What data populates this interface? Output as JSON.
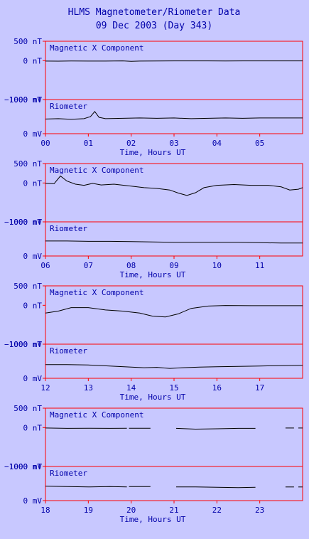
{
  "header": {
    "title": "HLMS Magnetometer/Riometer Data",
    "subtitle": "09 Dec 2003 (Day 343)"
  },
  "colors": {
    "background": "#c8c8ff",
    "frame": "#ff0000",
    "text": "#0000aa",
    "trace": "#000000"
  },
  "chart_data": [
    {
      "type": "line",
      "panel": "00-06 UT",
      "xlabel": "Time, Hours UT",
      "x_ticks": [
        "00",
        "01",
        "02",
        "03",
        "04",
        "05"
      ],
      "xlim": [
        0,
        6
      ],
      "subplots": [
        {
          "label": "Magnetic X Component",
          "unit": "nT",
          "y_ticks": [
            {
              "label": "500 nT",
              "value": 500
            },
            {
              "label": "0 nT",
              "value": 0
            },
            {
              "label": "−1000 nT",
              "value": -1000
            }
          ],
          "ylim": [
            -1000,
            500
          ],
          "series": [
            {
              "x": [
                0,
                0.3,
                0.6,
                1.0,
                1.4,
                1.8,
                2.0,
                2.2,
                2.6,
                3.0,
                3.4,
                3.8,
                4.2,
                4.6,
                5.0,
                5.5,
                6.0
              ],
              "y": [
                -10,
                -12,
                -8,
                -10,
                -10,
                -5,
                -15,
                -10,
                -8,
                -5,
                -5,
                -5,
                -8,
                -5,
                -5,
                -5,
                -5
              ]
            }
          ]
        },
        {
          "label": "Riometer",
          "unit": "mV",
          "y_ticks": [
            {
              "label": "1000 mV",
              "value": 1000
            },
            {
              "label": "0 mV",
              "value": 0
            }
          ],
          "ylim": [
            0,
            1000
          ],
          "series": [
            {
              "x": [
                0,
                0.3,
                0.6,
                0.9,
                1.05,
                1.15,
                1.25,
                1.4,
                1.8,
                2.2,
                2.6,
                3.0,
                3.4,
                3.8,
                4.2,
                4.6,
                5.0,
                5.5,
                6.0
              ],
              "y": [
                430,
                440,
                420,
                440,
                500,
                650,
                480,
                440,
                450,
                460,
                450,
                460,
                440,
                450,
                460,
                450,
                460,
                460,
                460
              ]
            }
          ]
        }
      ]
    },
    {
      "type": "line",
      "panel": "06-12 UT",
      "xlabel": "Time, Hours UT",
      "x_ticks": [
        "06",
        "07",
        "08",
        "09",
        "10",
        "11"
      ],
      "xlim": [
        6,
        12
      ],
      "subplots": [
        {
          "label": "Magnetic X Component",
          "unit": "nT",
          "y_ticks": [
            {
              "label": "500 nT",
              "value": 500
            },
            {
              "label": "0 nT",
              "value": 0
            },
            {
              "label": "−1000 nT",
              "value": -1000
            }
          ],
          "ylim": [
            -1000,
            500
          ],
          "series": [
            {
              "x": [
                6,
                6.2,
                6.35,
                6.5,
                6.7,
                6.9,
                7.1,
                7.3,
                7.6,
                8.0,
                8.3,
                8.6,
                8.9,
                9.1,
                9.3,
                9.5,
                9.7,
                10.0,
                10.4,
                10.8,
                11.2,
                11.5,
                11.7,
                11.9,
                12.0
              ],
              "y": [
                -10,
                -20,
                180,
                50,
                -30,
                -60,
                -10,
                -50,
                -30,
                -80,
                -120,
                -140,
                -180,
                -260,
                -320,
                -250,
                -120,
                -60,
                -40,
                -60,
                -60,
                -100,
                -180,
                -160,
                -120
              ]
            }
          ]
        },
        {
          "label": "Riometer",
          "unit": "mV",
          "y_ticks": [
            {
              "label": "1000 mV",
              "value": 1000
            },
            {
              "label": "0 mV",
              "value": 0
            }
          ],
          "ylim": [
            0,
            1000
          ],
          "series": [
            {
              "x": [
                6,
                6.5,
                7.0,
                7.5,
                8.0,
                8.5,
                9.0,
                9.5,
                10.0,
                10.5,
                11.0,
                11.5,
                12.0
              ],
              "y": [
                440,
                440,
                430,
                430,
                420,
                410,
                400,
                400,
                400,
                400,
                390,
                380,
                380
              ]
            }
          ]
        }
      ]
    },
    {
      "type": "line",
      "panel": "12-18 UT",
      "xlabel": "Time, Hours UT",
      "x_ticks": [
        "12",
        "13",
        "14",
        "15",
        "16",
        "17"
      ],
      "xlim": [
        12,
        18
      ],
      "subplots": [
        {
          "label": "Magnetic X Component",
          "unit": "nT",
          "y_ticks": [
            {
              "label": "500 nT",
              "value": 500
            },
            {
              "label": "0 nT",
              "value": 0
            },
            {
              "label": "−1000 nT",
              "value": -1000
            }
          ],
          "ylim": [
            -1000,
            500
          ],
          "series": [
            {
              "x": [
                12,
                12.3,
                12.6,
                13.0,
                13.4,
                13.8,
                14.2,
                14.5,
                14.8,
                15.1,
                15.4,
                15.8,
                16.2,
                16.8,
                17.4,
                18.0
              ],
              "y": [
                -200,
                -150,
                -60,
                -60,
                -120,
                -150,
                -200,
                -280,
                -300,
                -220,
                -80,
                -20,
                -5,
                -10,
                -10,
                -10
              ]
            }
          ]
        },
        {
          "label": "Riometer",
          "unit": "mV",
          "y_ticks": [
            {
              "label": "1000 mV",
              "value": 1000
            },
            {
              "label": "0 mV",
              "value": 0
            }
          ],
          "ylim": [
            0,
            1000
          ],
          "series": [
            {
              "x": [
                12,
                12.5,
                13.0,
                13.5,
                14.0,
                14.3,
                14.6,
                14.9,
                15.2,
                15.6,
                16.0,
                16.5,
                17.0,
                17.5,
                18.0
              ],
              "y": [
                400,
                400,
                390,
                360,
                330,
                310,
                320,
                290,
                310,
                330,
                340,
                350,
                360,
                370,
                380
              ]
            }
          ]
        }
      ]
    },
    {
      "type": "line",
      "panel": "18-24 UT",
      "xlabel": "Time, Hours UT",
      "x_ticks": [
        "18",
        "19",
        "20",
        "21",
        "22",
        "23"
      ],
      "xlim": [
        18,
        24
      ],
      "subplots": [
        {
          "label": "Magnetic X Component",
          "unit": "nT",
          "y_ticks": [
            {
              "label": "500 nT",
              "value": 500
            },
            {
              "label": "0 nT",
              "value": 0
            },
            {
              "label": "−1000 nT",
              "value": -1000
            }
          ],
          "ylim": [
            -1000,
            500
          ],
          "series": [
            {
              "x": [
                18.0,
                18.5,
                19.0,
                19.5,
                19.9
              ],
              "y": [
                -10,
                -20,
                -15,
                -20,
                -15
              ]
            },
            {
              "x": [
                19.95,
                20.45
              ],
              "y": [
                -15,
                -15
              ]
            },
            {
              "x": [
                21.05,
                21.5,
                22.0,
                22.5,
                22.9
              ],
              "y": [
                -20,
                -40,
                -30,
                -20,
                -20
              ]
            },
            {
              "x": [
                23.6,
                23.8
              ],
              "y": [
                -10,
                -10
              ]
            },
            {
              "x": [
                23.9,
                24.0
              ],
              "y": [
                -10,
                -10
              ]
            }
          ]
        },
        {
          "label": "Riometer",
          "unit": "mV",
          "y_ticks": [
            {
              "label": "1000 mV",
              "value": 1000
            },
            {
              "label": "0 mV",
              "value": 0
            }
          ],
          "ylim": [
            0,
            1000
          ],
          "series": [
            {
              "x": [
                18.0,
                18.5,
                19.0,
                19.5,
                19.9
              ],
              "y": [
                420,
                410,
                400,
                410,
                400
              ]
            },
            {
              "x": [
                19.95,
                20.45
              ],
              "y": [
                410,
                410
              ]
            },
            {
              "x": [
                21.05,
                21.5,
                22.0,
                22.5,
                22.9
              ],
              "y": [
                400,
                400,
                390,
                380,
                390
              ]
            },
            {
              "x": [
                23.6,
                23.8
              ],
              "y": [
                400,
                400
              ]
            },
            {
              "x": [
                23.9,
                24.0
              ],
              "y": [
                400,
                400
              ]
            }
          ]
        }
      ]
    }
  ]
}
